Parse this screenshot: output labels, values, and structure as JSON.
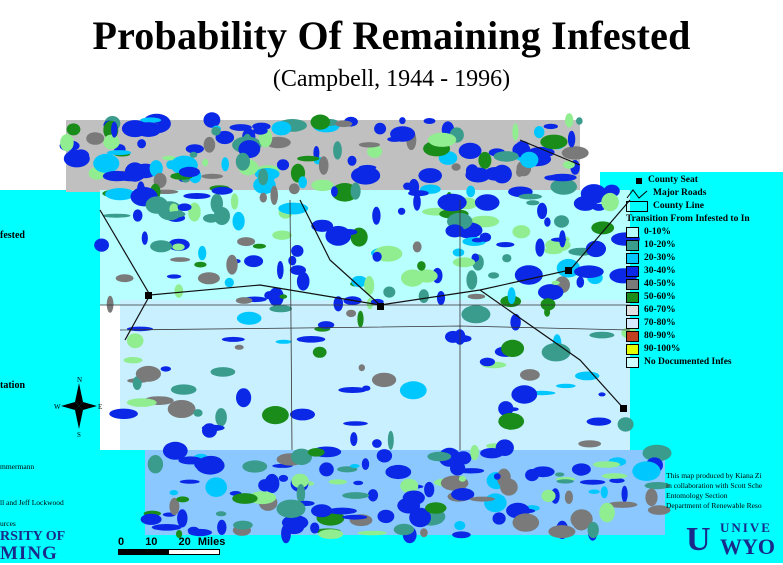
{
  "header": {
    "title": "Probability Of Remaining Infested",
    "subtitle": "(Campbell, 1944 - 1996)"
  },
  "legend": {
    "county_seat": "County Seat",
    "major_roads": "Major Roads",
    "county_line": "County Line",
    "transition_title": "Transition From Infested to In",
    "classes": [
      {
        "label": "0-10%",
        "color": "#b8ffff"
      },
      {
        "label": "10-20%",
        "color": "#3a9c8c"
      },
      {
        "label": "20-30%",
        "color": "#00c8ff"
      },
      {
        "label": "30-40%",
        "color": "#0a28e6"
      },
      {
        "label": "40-50%",
        "color": "#7a7a7a"
      },
      {
        "label": "50-60%",
        "color": "#1a8c1a"
      },
      {
        "label": "60-70%",
        "color": "#e0e0e0"
      },
      {
        "label": "70-80%",
        "color": "#d8e8ff"
      },
      {
        "label": "80-90%",
        "color": "#c04020"
      },
      {
        "label": "90-100%",
        "color": "#e6ff00"
      },
      {
        "label": "No Documented Infes",
        "color": "#cfffff"
      }
    ]
  },
  "left_panel": {
    "infested": "fested",
    "station": "tation",
    "credit_1": "mmermann",
    "credit_2": "ll and Jeff Lockwood",
    "credit_3": "urces",
    "univ_1": "RSITY OF",
    "univ_2": "MING"
  },
  "north_arrow": {
    "n": "N",
    "s": "S",
    "e": "E",
    "w": "W"
  },
  "scale_bar": {
    "labels": [
      "0",
      "10",
      "20",
      "Miles"
    ]
  },
  "credits_right": [
    "This map produced by Kiana Zi",
    "in collaboration with Scott Sche",
    "Entomology Section",
    "Department of Renewable Reso"
  ],
  "logo_right": {
    "line1": "UNIVE",
    "line2": "WYO"
  }
}
